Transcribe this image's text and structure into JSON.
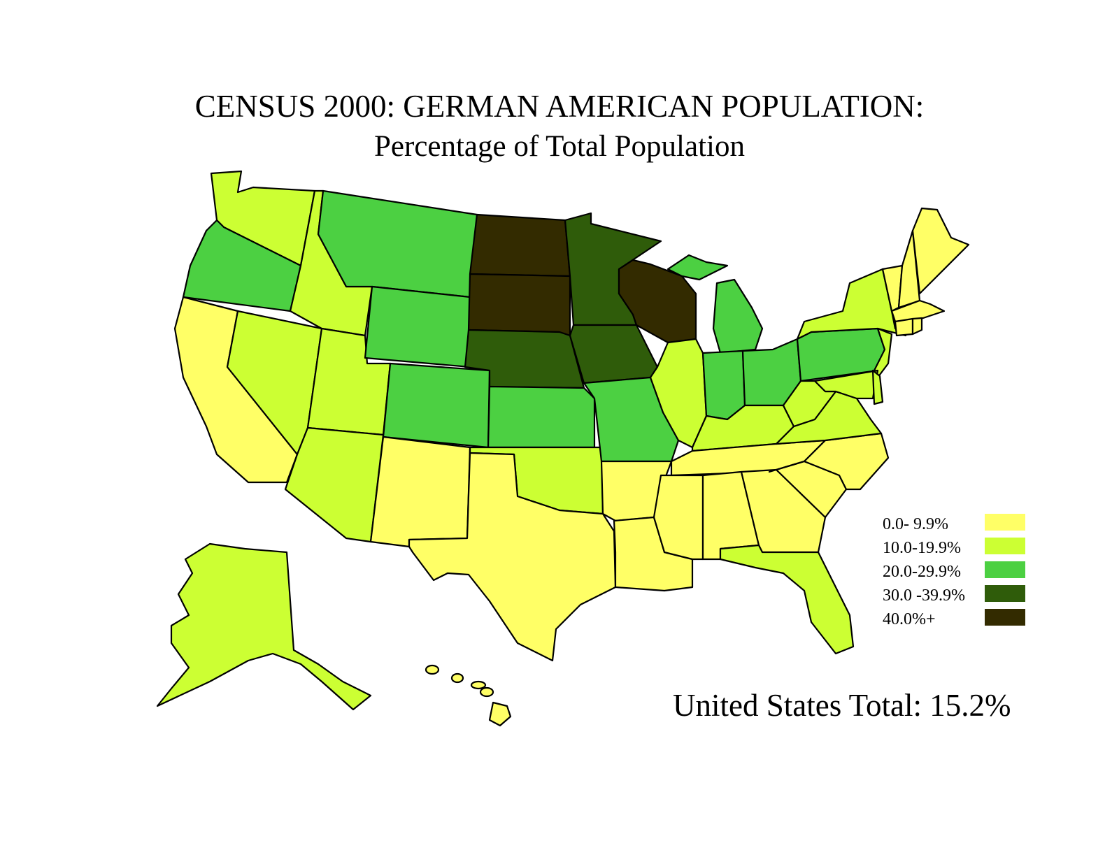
{
  "title": "CENSUS 2000: GERMAN AMERICAN POPULATION:",
  "subtitle": "Percentage of Total Population",
  "total_label": "United States Total: 15.2%",
  "colors": {
    "c0": "#ffff66",
    "c1": "#ccff33",
    "c2": "#4cd042",
    "c3": "#2f5c0a",
    "c4": "#332b00"
  },
  "legend": [
    {
      "label": "0.0- 9.9%",
      "class": "c0"
    },
    {
      "label": "10.0-19.9%",
      "class": "c1"
    },
    {
      "label": "20.0-29.9%",
      "class": "c2"
    },
    {
      "label": "30.0 -39.9%",
      "class": "c3"
    },
    {
      "label": "40.0%+",
      "class": "c4"
    }
  ],
  "states": {
    "washington": "c1",
    "oregon": "c2",
    "california": "c0",
    "idaho": "c1",
    "nevada": "c1",
    "utah": "c1",
    "arizona": "c1",
    "montana": "c2",
    "wyoming": "c2",
    "colorado": "c2",
    "new-mexico": "c0",
    "north-dakota": "c4",
    "south-dakota": "c4",
    "nebraska": "c3",
    "kansas": "c2",
    "oklahoma": "c1",
    "texas": "c0",
    "minnesota": "c3",
    "iowa": "c3",
    "missouri": "c2",
    "arkansas": "c0",
    "louisiana": "c0",
    "wisconsin": "c4",
    "illinois": "c1",
    "michigan": "c2",
    "indiana": "c2",
    "ohio": "c2",
    "kentucky": "c1",
    "tennessee": "c0",
    "mississippi": "c0",
    "alabama": "c0",
    "georgia": "c0",
    "florida": "c1",
    "south-carolina": "c0",
    "north-carolina": "c0",
    "virginia": "c1",
    "west-virginia": "c1",
    "pennsylvania": "c2",
    "new-york": "c1",
    "maryland": "c1",
    "delaware": "c1",
    "new-jersey": "c1",
    "connecticut": "c0",
    "rhode-island": "c0",
    "massachusetts": "c0",
    "vermont": "c0",
    "new-hampshire": "c0",
    "maine": "c0",
    "alaska": "c1",
    "hawaii": "c0"
  }
}
